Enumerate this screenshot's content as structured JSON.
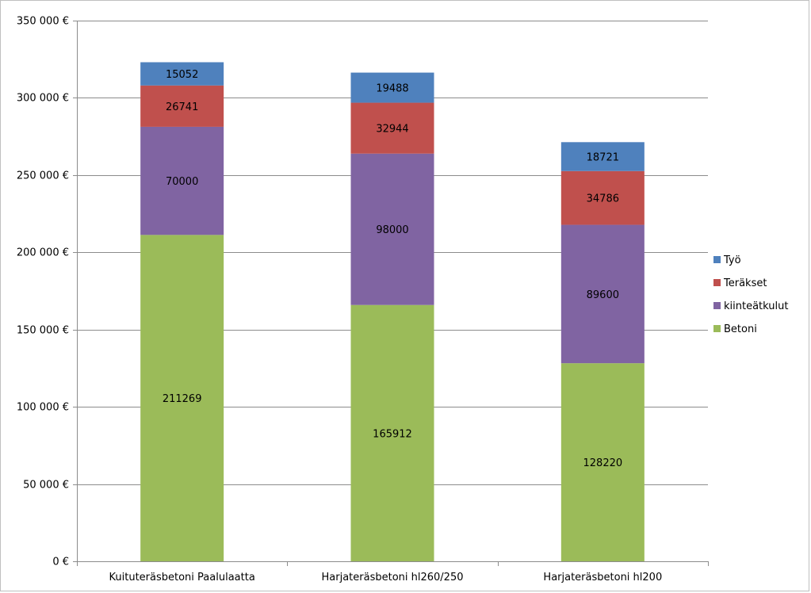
{
  "chart_data": {
    "type": "bar",
    "stacked": true,
    "title": "",
    "xlabel": "",
    "ylabel": "",
    "ylim": [
      0,
      350000
    ],
    "y_ticks": [
      0,
      50000,
      100000,
      150000,
      200000,
      250000,
      300000,
      350000
    ],
    "y_tick_labels": [
      "0 €",
      "50 000 €",
      "100 000 €",
      "150 000 €",
      "200 000 €",
      "250 000 €",
      "300 000 €",
      "350 000 €"
    ],
    "grid": true,
    "legend_position": "right",
    "categories": [
      "Kuituteräsbetoni Paalulaatta",
      "Harjateräsbetoni hl260/250",
      "Harjateräsbetoni hl200"
    ],
    "series": [
      {
        "name": "Betoni",
        "color": "#9bbb59",
        "values": [
          211269,
          165912,
          128220
        ]
      },
      {
        "name": "kiinteätkulut",
        "color": "#8064a2",
        "values": [
          70000,
          98000,
          89600
        ]
      },
      {
        "name": "Teräkset",
        "color": "#c0504d",
        "values": [
          26741,
          32944,
          34786
        ]
      },
      {
        "name": "Työ",
        "color": "#4f81bd",
        "values": [
          15052,
          19488,
          18721
        ]
      }
    ],
    "legend_order": [
      "Työ",
      "Teräkset",
      "kiinteätkulut",
      "Betoni"
    ]
  }
}
